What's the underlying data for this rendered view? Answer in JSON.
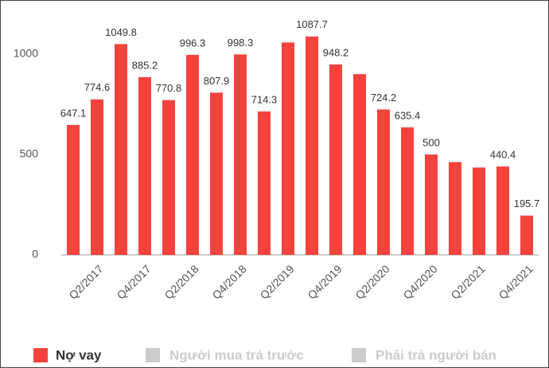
{
  "chart_data": {
    "type": "bar",
    "categories": [
      null,
      "Q2/2017",
      null,
      "Q4/2017",
      null,
      "Q2/2018",
      null,
      "Q4/2018",
      null,
      "Q2/2019",
      null,
      "Q4/2019",
      null,
      "Q2/2020",
      null,
      "Q4/2020",
      null,
      "Q2/2021",
      null,
      "Q4/2021"
    ],
    "series": [
      {
        "name": "Nợ vay",
        "color": "#f4433c",
        "values": [
          647.1,
          774.6,
          1049.8,
          885.2,
          770.8,
          996.3,
          807.9,
          998.3,
          714.3,
          1058,
          1087.7,
          948.2,
          900,
          724.2,
          635.4,
          500,
          462,
          435,
          440.4,
          195.7
        ],
        "value_labels": [
          "647.1",
          "774.6",
          "1049.8",
          "885.2",
          "770.8",
          "996.3",
          "807.9",
          "998.3",
          "714.3",
          null,
          "1087.7",
          "948.2",
          null,
          "724.2",
          "635.4",
          "500",
          null,
          null,
          "440.4",
          "195.7"
        ]
      }
    ],
    "legend_extra": [
      {
        "name": "Người mua trả trước",
        "color": "#cccccc"
      },
      {
        "name": "Phải trả người bán",
        "color": "#cccccc"
      }
    ],
    "ylim": [
      0,
      1190
    ],
    "yticks": [
      0,
      500,
      1000
    ],
    "grid": false
  }
}
